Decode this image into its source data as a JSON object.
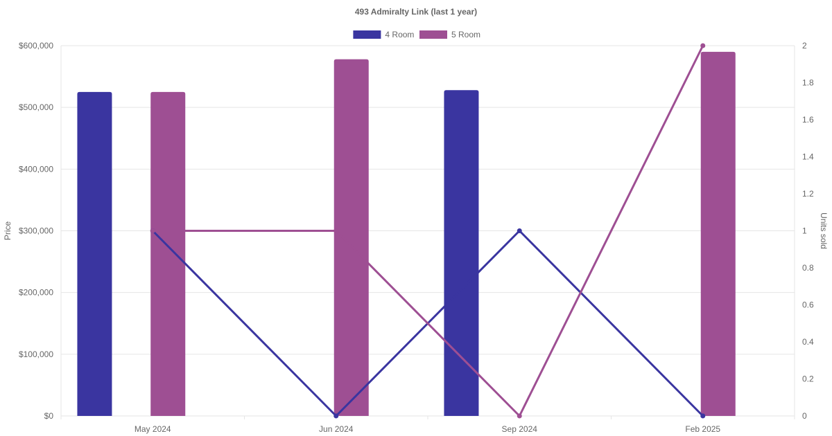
{
  "chart_data": {
    "type": "bar",
    "title": "493 Admiralty Link (last 1 year)",
    "categories": [
      "May 2024",
      "Jun 2024",
      "Sep 2024",
      "Feb 2025"
    ],
    "y_left": {
      "label": "Price",
      "min": 0,
      "max": 600000,
      "ticks": [
        0,
        100000,
        200000,
        300000,
        400000,
        500000,
        600000
      ],
      "tick_labels": [
        "$0",
        "$100,000",
        "$200,000",
        "$300,000",
        "$400,000",
        "$500,000",
        "$600,000"
      ]
    },
    "y_right": {
      "label": "Units sold",
      "min": 0,
      "max": 2,
      "ticks": [
        0,
        0.2,
        0.4,
        0.6,
        0.8,
        1,
        1.2,
        1.4,
        1.6,
        1.8,
        2
      ],
      "tick_labels": [
        "0",
        "0.2",
        "0.4",
        "0.6",
        "0.8",
        "1",
        "1.2",
        "1.4",
        "1.6",
        "1.8",
        "2"
      ]
    },
    "legend": {
      "placement": "top-center",
      "entries": [
        "4 Room",
        "5 Room"
      ]
    },
    "grid": true,
    "series": [
      {
        "name": "4 Room",
        "color": "#3a35a0",
        "bar_values": [
          525000,
          null,
          528000,
          null
        ],
        "line_values": [
          1,
          0,
          1,
          0
        ]
      },
      {
        "name": "5 Room",
        "color": "#9e4f93",
        "bar_values": [
          525000,
          578000,
          null,
          590000
        ],
        "line_values": [
          1,
          1,
          0,
          2
        ]
      }
    ]
  }
}
